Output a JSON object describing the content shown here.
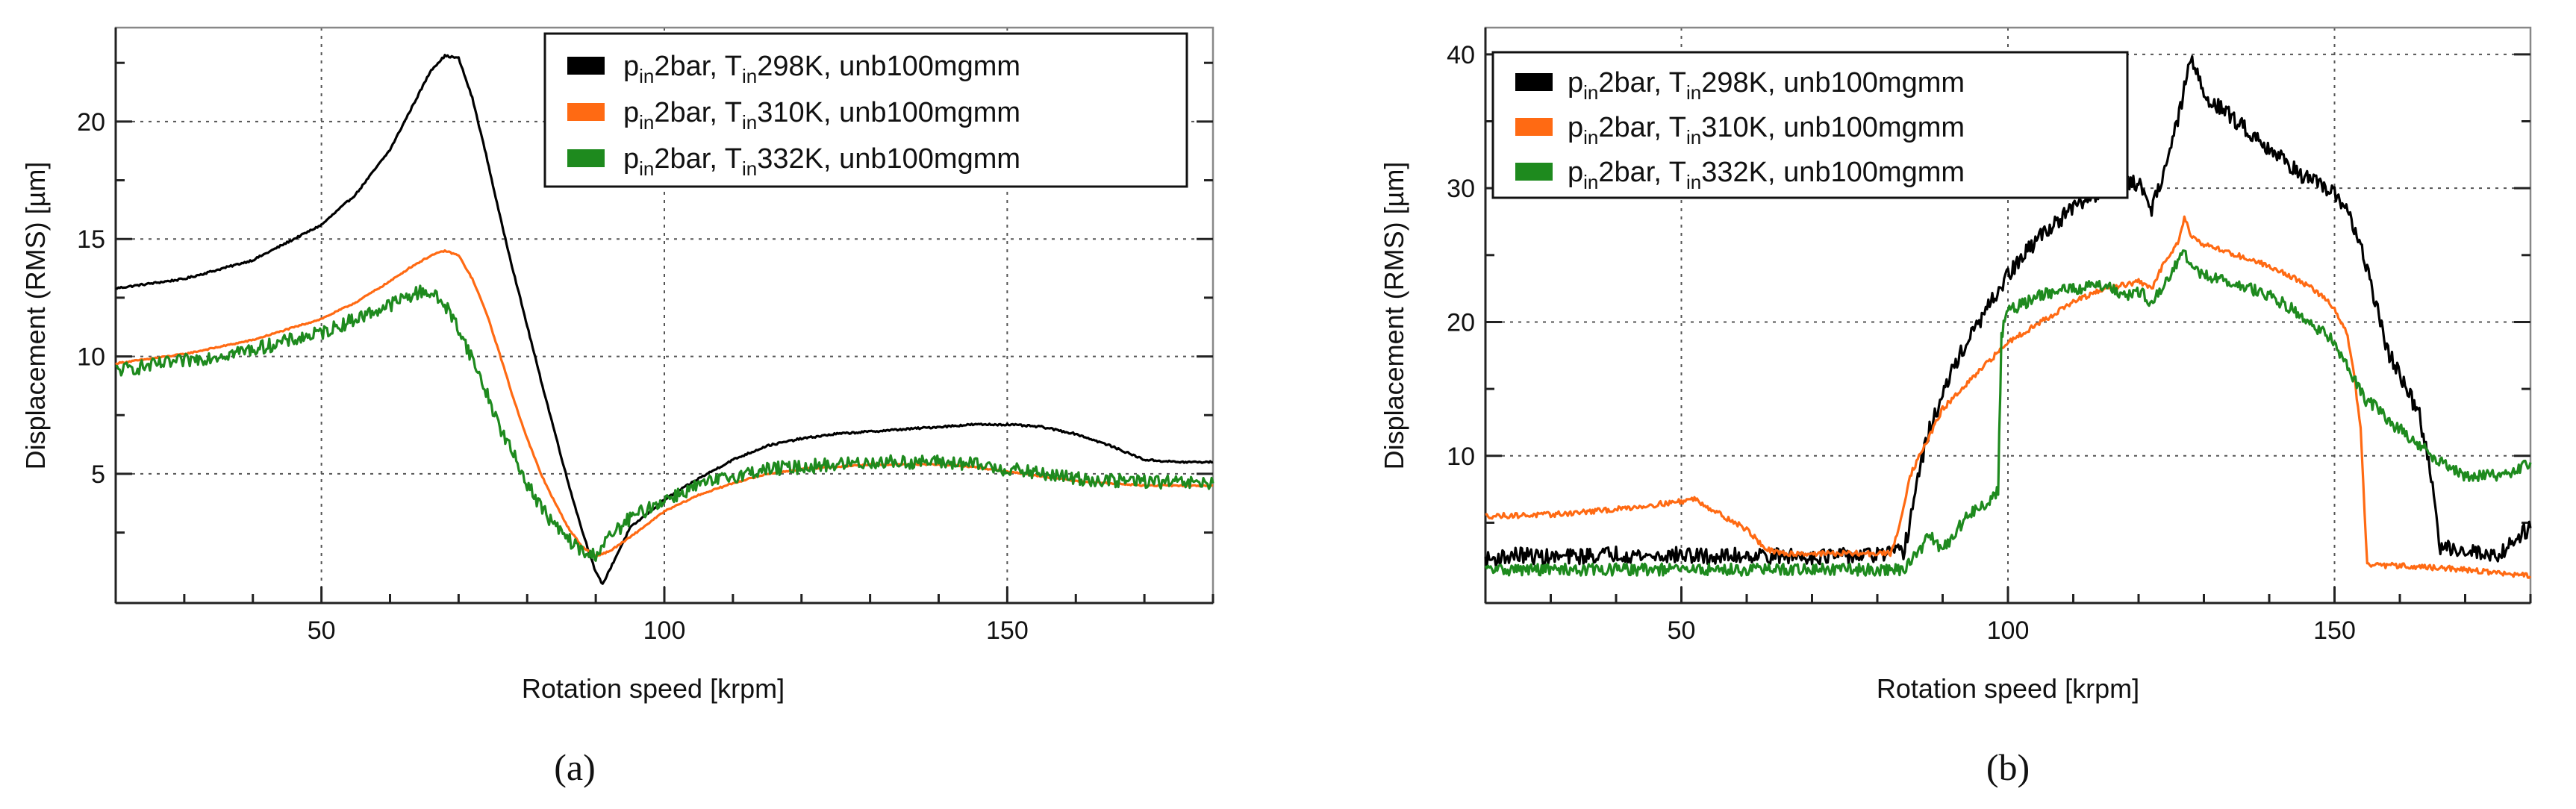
{
  "colors": {
    "black_series": "#000000",
    "orange_series": "#ff6a13",
    "green_series": "#1e8a1e"
  },
  "chart_data": [
    {
      "type": "line",
      "panel_label": "(a)",
      "xlabel": "Rotation speed [krpm]",
      "ylabel": "Displacement (RMS) [µm]",
      "xlim": [
        20,
        180
      ],
      "ylim": [
        -0.5,
        24
      ],
      "xticks": [
        50,
        100,
        150
      ],
      "yticks": [
        5,
        10,
        15,
        20
      ],
      "grid": true,
      "legend_position": "top-right",
      "series": [
        {
          "name": "p_in2bar, T_in298K, unb100mgmm",
          "legend_parts": [
            "p",
            "in",
            "2bar, T",
            "in",
            "298K, unb100mgmm"
          ],
          "color": "#000000",
          "noise": 0.04,
          "x": [
            20,
            30,
            40,
            50,
            55,
            60,
            63,
            66,
            68,
            70,
            72,
            74,
            76,
            78,
            80,
            82,
            84,
            86,
            88,
            90,
            91,
            92,
            95,
            100,
            105,
            110,
            115,
            120,
            125,
            130,
            135,
            140,
            145,
            150,
            155,
            160,
            165,
            170,
            175,
            180
          ],
          "y": [
            12.9,
            13.3,
            14.1,
            15.6,
            16.9,
            18.8,
            20.5,
            22.2,
            22.8,
            22.7,
            21.0,
            18.6,
            16.0,
            13.6,
            11.3,
            9.0,
            6.8,
            4.6,
            2.6,
            0.8,
            0.3,
            0.9,
            2.7,
            3.9,
            4.8,
            5.6,
            6.2,
            6.5,
            6.7,
            6.8,
            6.9,
            7.0,
            7.1,
            7.1,
            7.0,
            6.7,
            6.2,
            5.6,
            5.5,
            5.5
          ]
        },
        {
          "name": "p_in2bar, T_in310K, unb100mgmm",
          "legend_parts": [
            "p",
            "in",
            "2bar, T",
            "in",
            "310K, unb100mgmm"
          ],
          "color": "#ff6a13",
          "noise": 0.03,
          "x": [
            20,
            30,
            40,
            50,
            55,
            60,
            63,
            66,
            68,
            70,
            72,
            74,
            76,
            78,
            80,
            82,
            84,
            86,
            88,
            90,
            92,
            95,
            100,
            105,
            110,
            115,
            120,
            125,
            130,
            135,
            140,
            145,
            150,
            155,
            160,
            165,
            170,
            175,
            180
          ],
          "y": [
            9.7,
            10.1,
            10.7,
            11.6,
            12.3,
            13.2,
            13.8,
            14.3,
            14.5,
            14.3,
            13.3,
            11.9,
            10.1,
            8.2,
            6.5,
            5.0,
            3.8,
            2.7,
            1.9,
            1.5,
            1.7,
            2.3,
            3.4,
            4.1,
            4.6,
            5.0,
            5.2,
            5.3,
            5.4,
            5.4,
            5.4,
            5.3,
            5.1,
            4.9,
            4.7,
            4.6,
            4.5,
            4.5,
            4.5
          ]
        },
        {
          "name": "p_in2bar, T_in332K, unb100mgmm",
          "legend_parts": [
            "p",
            "in",
            "2bar, T",
            "in",
            "332K, unb100mgmm"
          ],
          "color": "#1e8a1e",
          "noise": 0.3,
          "x": [
            20,
            30,
            40,
            50,
            55,
            60,
            63,
            65,
            66,
            68,
            70,
            72,
            74,
            76,
            78,
            80,
            82,
            84,
            86,
            88,
            89,
            90,
            92,
            95,
            100,
            105,
            110,
            115,
            120,
            125,
            130,
            135,
            140,
            145,
            150,
            155,
            160,
            165,
            170,
            175,
            180
          ],
          "y": [
            9.4,
            9.8,
            10.3,
            11.0,
            11.6,
            12.2,
            12.6,
            12.8,
            12.7,
            12.2,
            11.2,
            9.9,
            8.5,
            7.0,
            5.8,
            4.6,
            3.6,
            2.8,
            2.2,
            1.7,
            1.5,
            1.6,
            2.3,
            3.1,
            3.9,
            4.5,
            4.9,
            5.2,
            5.3,
            5.4,
            5.5,
            5.5,
            5.5,
            5.4,
            5.2,
            5.0,
            4.8,
            4.7,
            4.7,
            4.6,
            4.6
          ]
        }
      ]
    },
    {
      "type": "line",
      "panel_label": "(b)",
      "xlabel": "Rotation speed [krpm]",
      "ylabel": "Displacement (RMS) [µm]",
      "xlim": [
        20,
        180
      ],
      "ylim": [
        -1,
        42
      ],
      "xticks": [
        50,
        100,
        150
      ],
      "yticks": [
        10,
        20,
        30,
        40
      ],
      "grid": true,
      "legend_position": "top-left",
      "series": [
        {
          "name": "p_in2bar, T_in298K, unb100mgmm",
          "legend_parts": [
            "p",
            "in",
            "2bar, T",
            "in",
            "298K, unb100mgmm"
          ],
          "color": "#000000",
          "noise": 0.6,
          "x": [
            20,
            25,
            30,
            35,
            40,
            45,
            50,
            55,
            60,
            65,
            70,
            75,
            80,
            84,
            85,
            86,
            87,
            88,
            90,
            92,
            95,
            100,
            105,
            110,
            115,
            120,
            122,
            124,
            126,
            128,
            130,
            135,
            140,
            145,
            150,
            152,
            155,
            158,
            160,
            163,
            165,
            166,
            170,
            175,
            178,
            180
          ],
          "y": [
            2.2,
            2.6,
            2.4,
            2.5,
            2.7,
            2.5,
            2.6,
            2.4,
            2.6,
            2.5,
            2.5,
            2.5,
            2.6,
            2.8,
            5.0,
            8.0,
            10.0,
            12.0,
            14.5,
            17.0,
            19.5,
            23.5,
            26.5,
            28.5,
            30.0,
            30.4,
            28.5,
            31.5,
            35.0,
            39.8,
            37.0,
            35.0,
            33.0,
            31.0,
            29.5,
            28.5,
            24.0,
            18.0,
            16.0,
            13.0,
            8.0,
            3.2,
            3.0,
            2.5,
            4.0,
            4.6
          ]
        },
        {
          "name": "p_in2bar, T_in310K, unb100mgmm",
          "legend_parts": [
            "p",
            "in",
            "2bar, T",
            "in",
            "310K, unb100mgmm"
          ],
          "color": "#ff6a13",
          "noise": 0.2,
          "x": [
            20,
            30,
            40,
            45,
            50,
            52,
            55,
            60,
            63,
            65,
            70,
            75,
            80,
            82,
            83,
            85,
            90,
            95,
            100,
            105,
            110,
            115,
            120,
            122,
            124,
            126,
            127,
            128,
            130,
            135,
            140,
            145,
            148,
            150,
            152,
            153,
            154,
            155,
            160,
            170,
            180
          ],
          "y": [
            5.5,
            5.6,
            6.0,
            6.3,
            6.6,
            6.8,
            5.9,
            4.5,
            3.0,
            2.7,
            2.7,
            2.7,
            2.7,
            2.7,
            4.0,
            8.5,
            13.5,
            16.0,
            18.5,
            20.0,
            21.5,
            22.5,
            23.0,
            22.5,
            24.5,
            26.0,
            27.8,
            26.5,
            25.8,
            25.0,
            24.2,
            23.0,
            22.0,
            21.0,
            19.0,
            16.0,
            12.0,
            1.8,
            1.8,
            1.5,
            1.0
          ]
        },
        {
          "name": "p_in2bar, T_in332K, unb100mgmm",
          "legend_parts": [
            "p",
            "in",
            "2bar, T",
            "in",
            "332K, unb100mgmm"
          ],
          "color": "#1e8a1e",
          "noise": 0.45,
          "x": [
            20,
            30,
            40,
            50,
            60,
            70,
            80,
            84,
            85,
            88,
            90,
            93,
            95,
            97,
            98.5,
            99,
            99.5,
            100,
            105,
            110,
            115,
            118,
            120,
            122,
            125,
            127,
            128,
            130,
            135,
            140,
            145,
            150,
            155,
            157,
            158,
            160,
            165,
            170,
            175,
            178,
            180
          ],
          "y": [
            1.5,
            1.5,
            1.5,
            1.5,
            1.5,
            1.5,
            1.5,
            1.5,
            2.0,
            4.0,
            3.0,
            5.0,
            6.0,
            6.5,
            7.5,
            19.0,
            20.0,
            20.8,
            22.0,
            22.5,
            22.8,
            22.0,
            22.3,
            21.5,
            23.5,
            25.5,
            24.0,
            23.5,
            22.8,
            22.0,
            20.5,
            18.5,
            14.0,
            13.5,
            12.5,
            12.0,
            10.0,
            8.5,
            8.5,
            9.0,
            9.5
          ]
        }
      ]
    }
  ]
}
